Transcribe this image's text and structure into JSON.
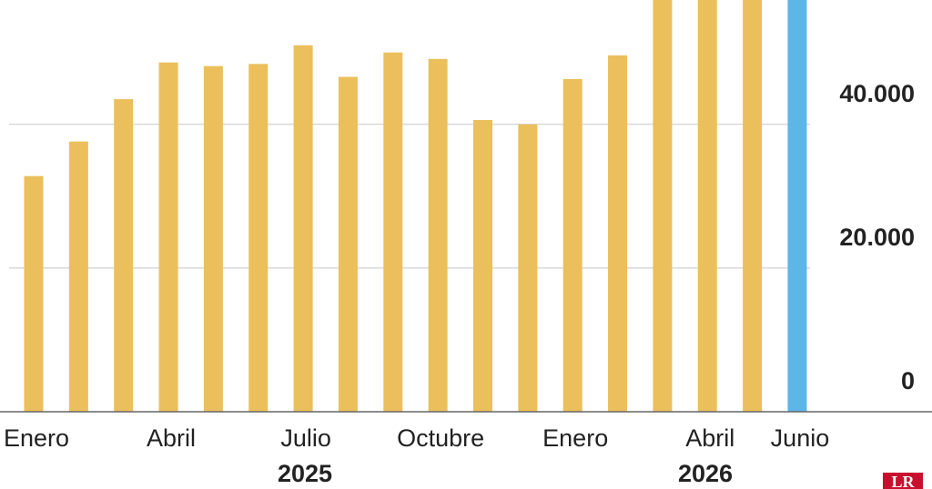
{
  "chart_data": {
    "type": "bar",
    "categories": [
      "Enero",
      null,
      null,
      "Abril",
      null,
      null,
      "Julio",
      null,
      null,
      "Octubre",
      null,
      null,
      "Enero",
      null,
      null,
      "Abril",
      null,
      "Junio"
    ],
    "values": [
      32800,
      37600,
      43500,
      48600,
      48100,
      48400,
      51000,
      46600,
      50000,
      49100,
      40600,
      40000,
      46300,
      49600,
      58000,
      58000,
      58000,
      58000
    ],
    "colors": [
      "#ebbf5c",
      "#ebbf5c",
      "#ebbf5c",
      "#ebbf5c",
      "#ebbf5c",
      "#ebbf5c",
      "#ebbf5c",
      "#ebbf5c",
      "#ebbf5c",
      "#ebbf5c",
      "#ebbf5c",
      "#ebbf5c",
      "#ebbf5c",
      "#ebbf5c",
      "#ebbf5c",
      "#ebbf5c",
      "#ebbf5c",
      "#5cb6e8"
    ],
    "ylim": [
      0,
      57300
    ],
    "yticks": [
      {
        "value": 0,
        "label": "0"
      },
      {
        "value": 20000,
        "label": "20.000"
      },
      {
        "value": 40000,
        "label": "40.000"
      }
    ],
    "grid": true,
    "year_labels": [
      "2025",
      "2026"
    ]
  },
  "logo": "LR"
}
